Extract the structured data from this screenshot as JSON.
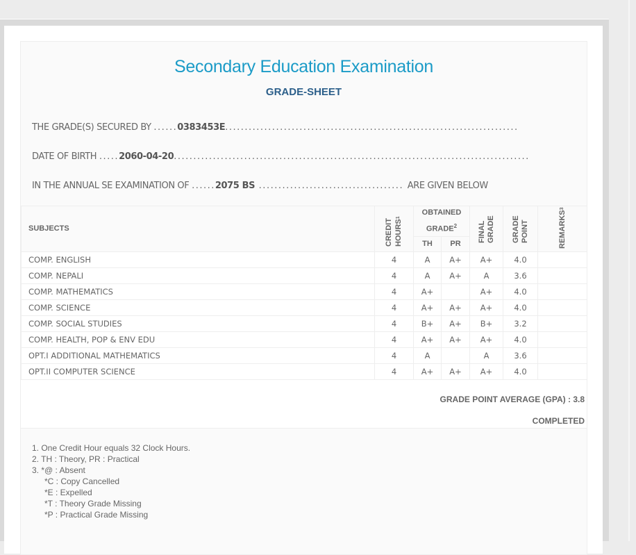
{
  "title": "Secondary Education Examination",
  "subtitle": "GRADE-SHEET",
  "info": {
    "secured_by_label": "THE GRADE(S) SECURED BY",
    "symbol_no": "0383453E",
    "dob_label": "DATE OF BIRTH",
    "dob": "2060-04-20",
    "exam_label": "IN THE ANNUAL SE EXAMINATION OF",
    "exam_year": "2075 BS",
    "given_below": "ARE GIVEN BELOW"
  },
  "table": {
    "headers": {
      "subjects": "SUBJECTS",
      "credit": "CREDIT HOURS",
      "credit_sup": "1",
      "obtained": "OBTAINED GRADE",
      "obtained_sup": "2",
      "th": "TH",
      "pr": "PR",
      "final": "FINAL GRADE",
      "grade_point": "GRADE POINT",
      "remarks": "REMARKS",
      "remarks_sup": "3"
    },
    "rows": [
      {
        "subject": "COMP. ENGLISH",
        "credit": "4",
        "th": "A",
        "pr": "A+",
        "final": "A+",
        "gp": "4.0",
        "remarks": ""
      },
      {
        "subject": "COMP. NEPALI",
        "credit": "4",
        "th": "A",
        "pr": "A+",
        "final": "A",
        "gp": "3.6",
        "remarks": ""
      },
      {
        "subject": "COMP. MATHEMATICS",
        "credit": "4",
        "th": "A+",
        "pr": "",
        "final": "A+",
        "gp": "4.0",
        "remarks": ""
      },
      {
        "subject": "COMP. SCIENCE",
        "credit": "4",
        "th": "A+",
        "pr": "A+",
        "final": "A+",
        "gp": "4.0",
        "remarks": ""
      },
      {
        "subject": "COMP. SOCIAL STUDIES",
        "credit": "4",
        "th": "B+",
        "pr": "A+",
        "final": "B+",
        "gp": "3.2",
        "remarks": ""
      },
      {
        "subject": "COMP. HEALTH, POP & ENV EDU",
        "credit": "4",
        "th": "A+",
        "pr": "A+",
        "final": "A+",
        "gp": "4.0",
        "remarks": ""
      },
      {
        "subject": "OPT.I ADDITIONAL MATHEMATICS",
        "credit": "4",
        "th": "A",
        "pr": "",
        "final": "A",
        "gp": "3.6",
        "remarks": ""
      },
      {
        "subject": "OPT.II COMPUTER SCIENCE",
        "credit": "4",
        "th": "A+",
        "pr": "A+",
        "final": "A+",
        "gp": "4.0",
        "remarks": ""
      }
    ]
  },
  "gpa": "GRADE POINT AVERAGE (GPA) : 3.8",
  "status": "COMPLETED",
  "notes": [
    "1. One Credit Hour equals 32 Clock Hours.",
    "2. TH : Theory, PR : Practical",
    "3. *@ : Absent",
    "*C : Copy Cancelled",
    "*E : Expelled",
    "*T : Theory Grade Missing",
    "*P : Practical Grade Missing"
  ]
}
